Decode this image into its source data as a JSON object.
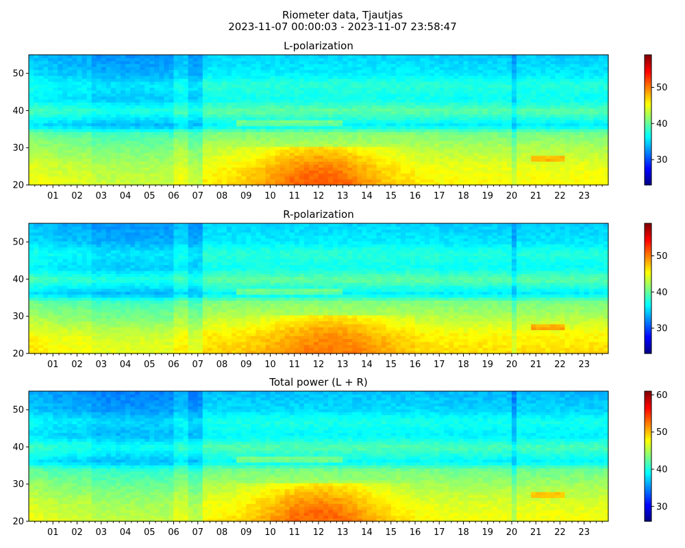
{
  "figure": {
    "title_line1": "Riometer data, Tjautjas",
    "title_line2": "2023-11-07 00:00:03 - 2023-11-07 23:58:47"
  },
  "chart_data": [
    {
      "type": "heatmap",
      "title": "L-polarization",
      "xlabel": "",
      "ylabel": "",
      "xlim": [
        0,
        24
      ],
      "ylim": [
        20,
        55
      ],
      "x_ticks": [
        "01",
        "02",
        "03",
        "04",
        "05",
        "06",
        "07",
        "08",
        "09",
        "10",
        "11",
        "12",
        "13",
        "14",
        "15",
        "16",
        "17",
        "18",
        "19",
        "20",
        "21",
        "22",
        "23"
      ],
      "y_ticks": [
        "20",
        "30",
        "40",
        "50"
      ],
      "colorbar": {
        "min": 23,
        "max": 59,
        "ticks": [
          "30",
          "40",
          "50"
        ],
        "colormap": "jet"
      },
      "baseline_by_y": [
        [
          20,
          46
        ],
        [
          25,
          45
        ],
        [
          30,
          43
        ],
        [
          34,
          41
        ],
        [
          36,
          36
        ],
        [
          40,
          40
        ],
        [
          43,
          37
        ],
        [
          47,
          38
        ],
        [
          50,
          36
        ],
        [
          55,
          35
        ]
      ],
      "enhancement_region": {
        "x_range": [
          7.3,
          16.0
        ],
        "y_range": [
          20,
          30
        ],
        "peak_value": 51,
        "peak_x": 12
      }
    },
    {
      "type": "heatmap",
      "title": "R-polarization",
      "xlabel": "",
      "ylabel": "",
      "xlim": [
        0,
        24
      ],
      "ylim": [
        20,
        55
      ],
      "x_ticks": [
        "01",
        "02",
        "03",
        "04",
        "05",
        "06",
        "07",
        "08",
        "09",
        "10",
        "11",
        "12",
        "13",
        "14",
        "15",
        "16",
        "17",
        "18",
        "19",
        "20",
        "21",
        "22",
        "23"
      ],
      "y_ticks": [
        "20",
        "30",
        "40",
        "50"
      ],
      "colorbar": {
        "min": 23,
        "max": 59,
        "ticks": [
          "30",
          "40",
          "50"
        ],
        "colormap": "jet"
      },
      "baseline_by_y": [
        [
          20,
          47
        ],
        [
          25,
          46
        ],
        [
          30,
          43
        ],
        [
          34,
          41
        ],
        [
          36,
          36
        ],
        [
          40,
          40
        ],
        [
          43,
          37
        ],
        [
          47,
          38
        ],
        [
          50,
          36
        ],
        [
          55,
          35
        ]
      ],
      "enhancement_region": {
        "x_range": [
          7.3,
          16.0
        ],
        "y_range": [
          20,
          30
        ],
        "peak_value": 50,
        "peak_x": 12.5
      }
    },
    {
      "type": "heatmap",
      "title": "Total power (L + R)",
      "xlabel": "",
      "ylabel": "",
      "xlim": [
        0,
        24
      ],
      "ylim": [
        20,
        55
      ],
      "x_ticks": [
        "01",
        "02",
        "03",
        "04",
        "05",
        "06",
        "07",
        "08",
        "09",
        "10",
        "11",
        "12",
        "13",
        "14",
        "15",
        "16",
        "17",
        "18",
        "19",
        "20",
        "21",
        "22",
        "23"
      ],
      "y_ticks": [
        "20",
        "30",
        "40",
        "50"
      ],
      "colorbar": {
        "min": 26,
        "max": 61,
        "ticks": [
          "30",
          "40",
          "50",
          "60"
        ],
        "colormap": "jet"
      },
      "baseline_by_y": [
        [
          20,
          48
        ],
        [
          25,
          47
        ],
        [
          30,
          45
        ],
        [
          34,
          43
        ],
        [
          36,
          39
        ],
        [
          40,
          42
        ],
        [
          43,
          39
        ],
        [
          47,
          40
        ],
        [
          50,
          38
        ],
        [
          55,
          37
        ]
      ],
      "enhancement_region": {
        "x_range": [
          7.3,
          16.0
        ],
        "y_range": [
          20,
          30
        ],
        "peak_value": 53,
        "peak_x": 12
      }
    }
  ]
}
